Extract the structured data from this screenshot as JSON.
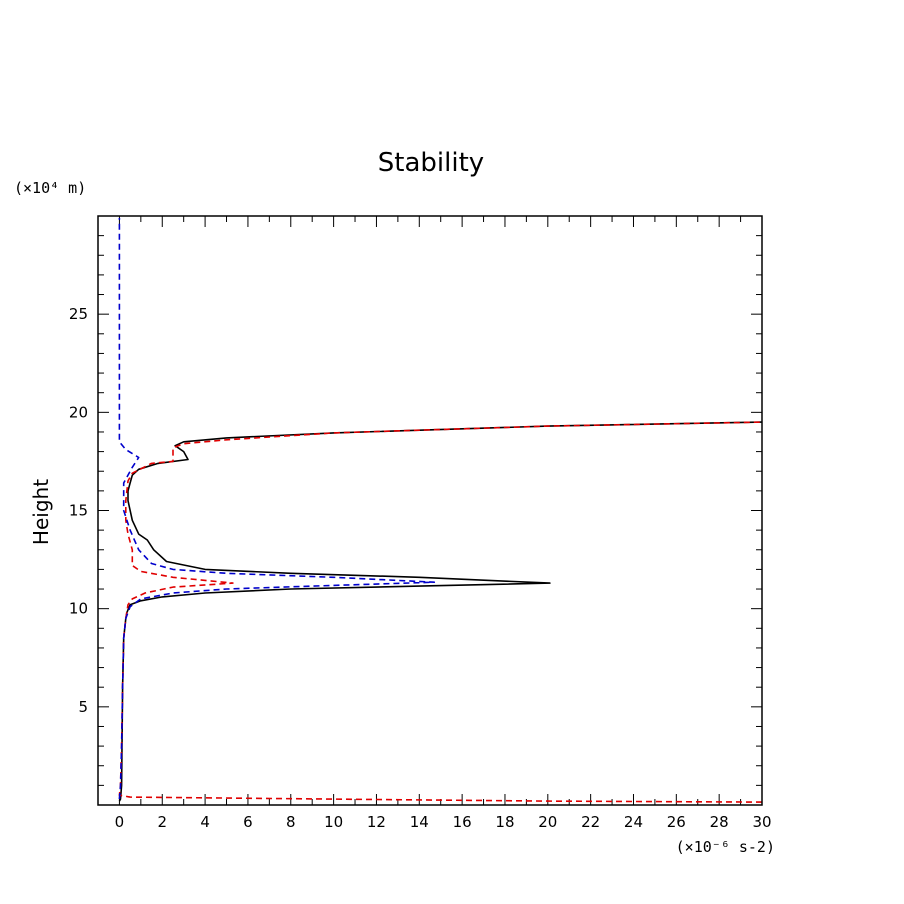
{
  "chart_data": {
    "type": "line",
    "title": "Stability",
    "xlabel": "",
    "x_unit": "(×10⁻⁶ s-2)",
    "ylabel": "Height",
    "y_unit": "(×10⁴ m)",
    "xlim": [
      -1,
      30
    ],
    "ylim": [
      0,
      30
    ],
    "xticks": [
      0,
      2,
      4,
      6,
      8,
      10,
      12,
      14,
      16,
      18,
      20,
      22,
      24,
      26,
      28,
      30
    ],
    "yticks": [
      5,
      10,
      15,
      20,
      25
    ],
    "colors": {
      "black": "#000000",
      "red": "#e00000",
      "blue": "#0000cc"
    },
    "series": [
      {
        "name": "black-solid",
        "color": "#000000",
        "dash": "solid",
        "x": [
          0.0,
          0.05,
          0.1,
          0.12,
          0.15,
          0.2,
          0.3,
          0.35,
          0.5,
          1.0,
          2.0,
          4.0,
          8.0,
          14.0,
          20.1,
          14.0,
          8.0,
          4.0,
          2.2,
          1.6,
          1.3,
          0.9,
          0.6,
          0.4,
          0.4,
          0.5,
          0.6,
          0.9,
          1.8,
          3.2,
          3.0,
          2.6,
          3.0,
          5.0,
          10.0,
          20.0,
          30.0
        ],
        "y": [
          0.2,
          0.3,
          1.0,
          3.0,
          6.0,
          8.5,
          9.5,
          9.8,
          10.2,
          10.4,
          10.6,
          10.8,
          11.0,
          11.15,
          11.3,
          11.6,
          11.8,
          12.0,
          12.4,
          13.0,
          13.5,
          13.8,
          14.5,
          15.5,
          16.0,
          16.4,
          16.8,
          17.1,
          17.4,
          17.6,
          18.0,
          18.3,
          18.5,
          18.7,
          18.95,
          19.3,
          19.5
        ]
      },
      {
        "name": "red-dashed",
        "color": "#e00000",
        "dash": "dashed",
        "x": [
          30.0,
          20.0,
          10.0,
          0.5,
          0.0,
          0.05,
          0.1,
          0.15,
          0.2,
          0.3,
          0.4,
          0.6,
          1.2,
          2.5,
          5.3,
          2.5,
          1.0,
          0.6,
          0.6,
          0.4,
          0.3,
          0.3,
          0.4,
          0.6,
          1.5,
          2.5,
          2.5,
          3.0,
          5.0,
          10.0,
          20.0,
          30.0
        ],
        "y": [
          0.15,
          0.2,
          0.3,
          0.4,
          0.5,
          1.0,
          3.0,
          6.0,
          8.5,
          9.5,
          10.2,
          10.5,
          10.8,
          11.1,
          11.3,
          11.6,
          11.9,
          12.2,
          13.0,
          13.8,
          14.5,
          15.5,
          16.5,
          16.9,
          17.4,
          17.5,
          18.2,
          18.4,
          18.6,
          18.95,
          19.3,
          19.5
        ]
      },
      {
        "name": "blue-dashed",
        "color": "#0000cc",
        "dash": "dashed",
        "x": [
          0.0,
          0.05,
          0.1,
          0.15,
          0.2,
          0.3,
          0.5,
          1.0,
          2.5,
          5.0,
          9.0,
          14.7,
          10.0,
          5.0,
          2.5,
          1.5,
          0.9,
          0.5,
          0.2,
          0.2,
          0.6,
          0.9,
          0.3,
          0.0,
          0.0,
          0.0
        ],
        "y": [
          0.3,
          1.0,
          3.0,
          6.0,
          8.5,
          9.5,
          10.1,
          10.5,
          10.8,
          11.0,
          11.15,
          11.35,
          11.6,
          11.8,
          12.0,
          12.3,
          13.0,
          14.0,
          15.0,
          16.4,
          17.2,
          17.7,
          18.1,
          18.5,
          25.0,
          29.9
        ]
      }
    ]
  }
}
